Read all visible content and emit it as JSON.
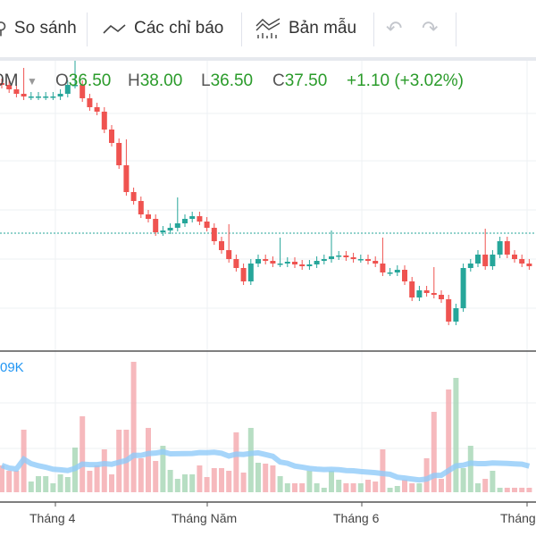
{
  "toolbar": {
    "compare": "So sánh",
    "indicators": "Các chỉ báo",
    "templates": "Bản mẫu"
  },
  "legend": {
    "interval": "0M",
    "o_label": "O",
    "o": "36.50",
    "h_label": "H",
    "h": "38.00",
    "l_label": "L",
    "l": "36.50",
    "c_label": "C",
    "c": "37.50",
    "change": "+1.10 (+3.02%)"
  },
  "volume_label": "09K",
  "x_labels": [
    "Tháng 4",
    "Tháng Năm",
    "Tháng 6",
    "Tháng"
  ],
  "colors": {
    "up": "#26a69a",
    "down": "#ef5350",
    "ma": "#90caf9"
  },
  "chart_data": {
    "type": "candlestick",
    "closes": [
      37.35,
      37.1,
      36.85,
      36.7,
      36.7,
      36.7,
      36.7,
      36.7,
      36.85,
      37.35,
      37.35,
      36.6,
      36.1,
      35.85,
      34.85,
      34.1,
      32.85,
      31.35,
      30.85,
      30.1,
      29.85,
      29.1,
      29.2,
      29.35,
      29.6,
      29.85,
      30.0,
      29.7,
      29.35,
      28.6,
      28.1,
      27.6,
      27.1,
      26.35,
      27.35,
      27.6,
      27.5,
      27.35,
      27.35,
      27.45,
      27.3,
      27.2,
      27.3,
      27.5,
      27.6,
      27.75,
      27.8,
      27.7,
      27.6,
      27.6,
      27.5,
      27.35,
      26.85,
      26.85,
      27.0,
      26.35,
      25.45,
      25.85,
      25.7,
      25.6,
      25.35,
      24.1,
      24.85,
      27.1,
      27.35,
      27.85,
      27.2,
      27.85,
      28.6,
      27.85,
      27.6,
      27.35,
      27.2
    ],
    "volumes": [
      30,
      24,
      24,
      70,
      12,
      18,
      18,
      10,
      20,
      17,
      50,
      85,
      24,
      30,
      48,
      20,
      70,
      70,
      146,
      38,
      72,
      35,
      52,
      25,
      15,
      20,
      20,
      30,
      17,
      27,
      27,
      24,
      67,
      22,
      72,
      33,
      32,
      30,
      18,
      10,
      10,
      10,
      24,
      10,
      5,
      24,
      14,
      10,
      10,
      10,
      14,
      12,
      48,
      5,
      7,
      14,
      10,
      10,
      38,
      90,
      15,
      115,
      128,
      27,
      52,
      10,
      15,
      24,
      5,
      5,
      5,
      5,
      5
    ],
    "reference_price": 29.05
  }
}
